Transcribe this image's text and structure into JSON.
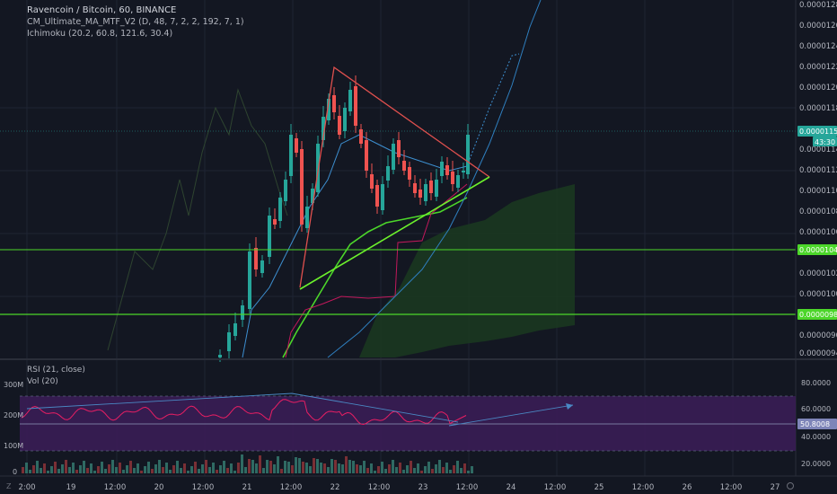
{
  "header": {
    "title": "Ravencoin / Bitcoin, 60, BINANCE",
    "indicator1": "CM_Ultimate_MA_MTF_V2 (D, 48, 7, 2, 2, 192, 7, 1)",
    "indicator2": "Ichimoku (20.2, 60.8, 121.6, 30.4)"
  },
  "lower_pane": {
    "rsi_label": "RSI (21, close)",
    "vol_label": "Vol (20)",
    "left_axis": [
      "300M",
      "200M",
      "100M",
      "0"
    ],
    "right_axis": [
      "80.0000",
      "60.0000",
      "40.0000",
      "20.0000"
    ],
    "rsi_badge": "50.8008"
  },
  "x_axis": [
    "2:00",
    "19",
    "12:00",
    "20",
    "12:00",
    "21",
    "12:00",
    "22",
    "12:00",
    "23",
    "12:00",
    "24",
    "12:00",
    "25",
    "12:00",
    "26",
    "12:00",
    "27"
  ],
  "price_axis": [
    "0.00001280",
    "0.00001260",
    "0.00001240",
    "0.00001220",
    "0.00001200",
    "0.00001180",
    "0.00001140",
    "0.00001120",
    "0.00001100",
    "0.00001080",
    "0.00001060",
    "0.00001040",
    "0.00001020",
    "0.00001000",
    "0.00000980",
    "0.00000962",
    "0.00000945"
  ],
  "badges": {
    "price": "0.00001158",
    "countdown": "43:30",
    "line_upper": "0.00001045",
    "line_lower": "0.00000983"
  },
  "corner_icon": "tradingview-z-icon",
  "colors": {
    "background": "#131722",
    "up": "#26a69a",
    "down": "#ef5350",
    "horizontal_level": "#4cd62a",
    "rsi_line": "#e91e63",
    "rsi_band": "#4a1f63",
    "triangle_top": "#e0504e",
    "triangle_bottom": "#6cf12c",
    "cloud": "#1d3b22"
  },
  "chart_data": {
    "type": "candlestick",
    "symbol": "Ravencoin / Bitcoin",
    "timeframe": "60",
    "exchange": "BINANCE",
    "y_axis": {
      "min": 9.45e-06,
      "max": 1.28e-05,
      "scale": "linear"
    },
    "horizontal_levels": [
      1.045e-05,
      9.83e-06
    ],
    "last_price": 1.158e-05,
    "swing_points": [
      {
        "time": "21 00:00",
        "value": 9.5e-06
      },
      {
        "time": "21 12:00",
        "value": 1.16e-05
      },
      {
        "time": "21 18:00",
        "value": 1.22e-05
      },
      {
        "time": "22 12:00",
        "value": 1.08e-05
      },
      {
        "time": "23 12:00",
        "value": 1.16e-05
      }
    ],
    "rsi": {
      "period": 21,
      "last": 50.8008,
      "band": [
        30,
        70
      ]
    },
    "volume_scale": [
      0,
      100000000,
      200000000,
      300000000
    ]
  }
}
